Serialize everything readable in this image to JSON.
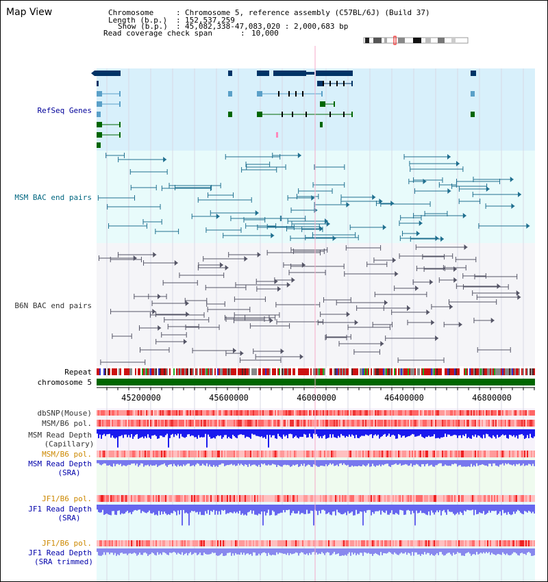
{
  "window": {
    "title": "Map View"
  },
  "info": {
    "chromosome_label": "Chromosome",
    "chromosome_value": "Chromosome 5, reference assembly (C57BL/6J) (Build 37)",
    "length_label": "Length (b.p.)",
    "length_value": "152,537,259",
    "show_label": "Show (b.p.)",
    "show_value": "45,082,338-47,083,020 : 2,000,683 bp",
    "coverage_label": "Read coverage check span",
    "coverage_value": "10,000"
  },
  "tracks": {
    "refseq": "RefSeq Genes",
    "msm_bac": "MSM BAC end pairs",
    "b6n_bac": "B6N BAC end pairs",
    "repeat": "Repeat",
    "chromosome": "chromosome 5",
    "dbsnp": "dbSNP(Mouse)",
    "msm_b6_pol_1": "MSM/B6 pol.",
    "msm_read_depth_cap": "MSM Read Depth",
    "msm_read_depth_cap_sub": "(Capillary)",
    "msm_b6_pol_2": "MSM/B6 pol.",
    "msm_read_depth_sra": "MSM Read Depth",
    "msm_read_depth_sra_sub": "(SRA)",
    "jf1_b6_pol_1": "JF1/B6 pol.",
    "jf1_read_depth": "JF1 Read Depth",
    "jf1_read_depth_sub": "(SRA)",
    "jf1_b6_pol_2": "JF1/B6 pol.",
    "jf1_read_depth_trim": "JF1 Read Depth",
    "jf1_read_depth_trim_sub": "(SRA trimmed)"
  },
  "axis": {
    "ticks": [
      "45200000",
      "45600000",
      "46000000",
      "46400000",
      "46800000"
    ]
  },
  "colors": {
    "refseq_label": "#000099",
    "msm_label": "#006680",
    "b6n_label": "#333333",
    "orange_label": "#cc8800",
    "blue_label": "#0000aa",
    "refseq_bg": "#d8f0fb",
    "msm_bg": "#e8fbfb",
    "b6n_bg": "#f5f5f8",
    "chromosome_bar": "#006600"
  }
}
